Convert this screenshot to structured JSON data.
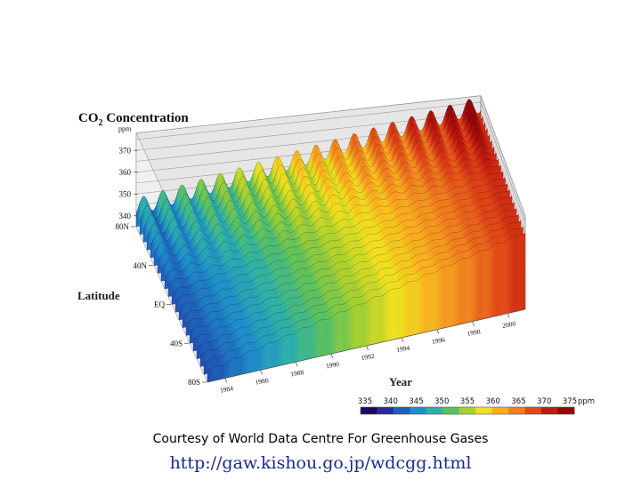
{
  "chart_data": {
    "type": "surface",
    "title_main": "CO",
    "title_sub": "2",
    "title_rest": " Concentration",
    "z_unit": "ppm",
    "z_ticks": [
      340,
      350,
      360,
      370
    ],
    "latitude_label": "Latitude",
    "latitude_ticks": [
      "80N",
      "40N",
      "EQ",
      "40S",
      "80S"
    ],
    "latitude_values": [
      80,
      40,
      0,
      -40,
      -80
    ],
    "year_label": "Year",
    "year_ticks": [
      1984,
      1986,
      1988,
      1990,
      1992,
      1994,
      1996,
      1998,
      2000
    ],
    "year_range": [
      1983,
      2001
    ],
    "colorbar_ticks": [
      335,
      340,
      345,
      350,
      355,
      360,
      365,
      370,
      375
    ],
    "colorbar_unit": "ppm",
    "colorbar_colors": [
      "#1a0a5c",
      "#2b2a9a",
      "#1f5fb8",
      "#1f8fc8",
      "#2fb0a8",
      "#5cc060",
      "#a8d030",
      "#f0e020",
      "#f8b020",
      "#f08020",
      "#e04818",
      "#c01a10",
      "#900808"
    ],
    "trend": {
      "start_year": 1983,
      "start_ppm": 341,
      "end_year": 2001,
      "end_ppm": 371
    },
    "seasonal_amplitude_ppm": {
      "80N": 8,
      "40N": 7,
      "EQ": 2,
      "40S": 1,
      "80S": 1
    },
    "grid": true
  },
  "caption": "Courtesy of World Data Centre For Greenhouse Gases",
  "url": "http://gaw.kishou.go.jp/wdcgg.html"
}
